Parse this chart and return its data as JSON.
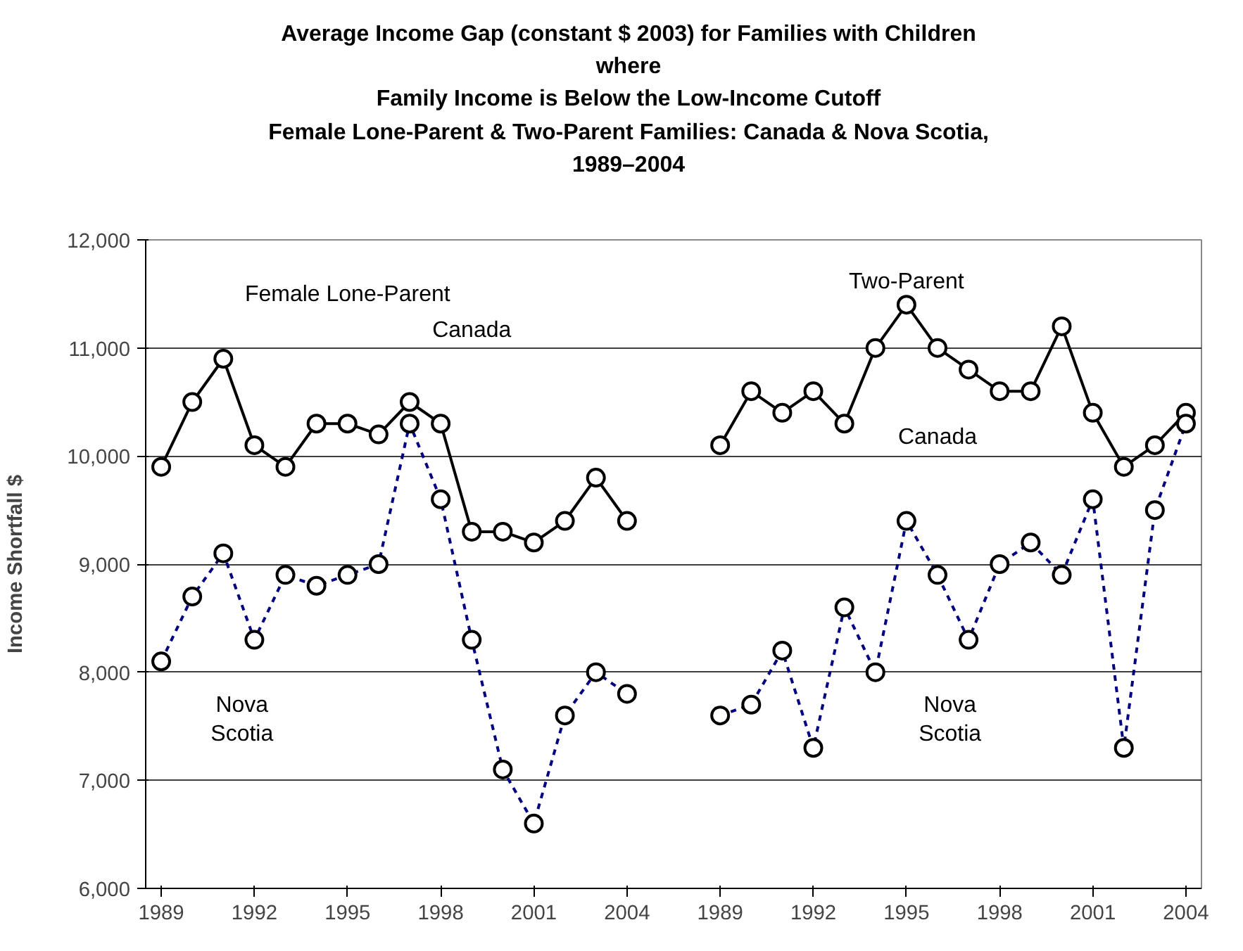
{
  "chart_data": {
    "type": "line",
    "title": "Average Income Gap (constant $ 2003) for Families with Children\nwhere\nFamily Income is Below the Low-Income Cutoff\nFemale Lone-Parent & Two-Parent Families: Canada & Nova Scotia,\n1989–2004",
    "ylabel": "Income Shortfall $",
    "annotations": [
      "Female Lone-Parent",
      "Two-Parent"
    ],
    "categories": [
      "1989",
      null,
      null,
      "1992",
      null,
      null,
      "1995",
      null,
      null,
      "1998",
      null,
      null,
      "2001",
      null,
      null,
      "2004",
      null,
      null,
      "1989",
      null,
      null,
      "1992",
      null,
      null,
      "1995",
      null,
      null,
      "1998",
      null,
      null,
      "2001",
      null,
      null,
      "2004"
    ],
    "series": [
      {
        "name": "Canada",
        "color": "#000000",
        "line_style": "solid",
        "values": [
          9900,
          10500,
          10900,
          10100,
          9900,
          10300,
          10300,
          10200,
          10500,
          10300,
          9300,
          9300,
          9200,
          9400,
          9800,
          9400,
          null,
          null,
          null,
          null,
          null,
          null,
          null,
          null,
          null,
          null,
          null,
          null,
          null,
          null,
          null,
          null,
          null,
          null
        ]
      },
      {
        "name": "Nova Scotia",
        "color": "#000080",
        "line_style": "dashed",
        "values": [
          8100,
          8700,
          9100,
          8300,
          8900,
          8800,
          8900,
          9000,
          10300,
          9600,
          8300,
          7100,
          6600,
          7600,
          8000,
          7800,
          null,
          null,
          null,
          null,
          null,
          null,
          null,
          null,
          null,
          null,
          null,
          null,
          null,
          null,
          null,
          null,
          null,
          null
        ]
      },
      {
        "name": "Canada",
        "color": "#000000",
        "line_style": "solid",
        "values": [
          null,
          null,
          null,
          null,
          null,
          null,
          null,
          null,
          null,
          null,
          null,
          null,
          null,
          null,
          null,
          null,
          null,
          null,
          10100,
          10600,
          10400,
          10600,
          10300,
          11000,
          11400,
          11000,
          10800,
          10600,
          10600,
          11200,
          10400,
          9900,
          10100,
          10400
        ]
      },
      {
        "name": "Nova Scotia",
        "color": "#000080",
        "line_style": "dashed",
        "values": [
          null,
          null,
          null,
          null,
          null,
          null,
          null,
          null,
          null,
          null,
          null,
          null,
          null,
          null,
          null,
          null,
          null,
          null,
          7600,
          7700,
          8200,
          7300,
          8600,
          8000,
          9400,
          8900,
          8300,
          9000,
          9200,
          8900,
          9600,
          7300,
          9500,
          10300
        ]
      }
    ],
    "ylim": [
      6000,
      12000
    ],
    "yticks": [
      {
        "value": 6000,
        "label": "6,000"
      },
      {
        "value": 7000,
        "label": "7,000"
      },
      {
        "value": 8000,
        "label": "8,000"
      },
      {
        "value": 9000,
        "label": "9,000"
      },
      {
        "value": 10000,
        "label": "10,000"
      },
      {
        "value": 11000,
        "label": "11,000"
      },
      {
        "value": 12000,
        "label": "12,000"
      }
    ],
    "grid": "y",
    "legend": false,
    "marker": "circle"
  }
}
